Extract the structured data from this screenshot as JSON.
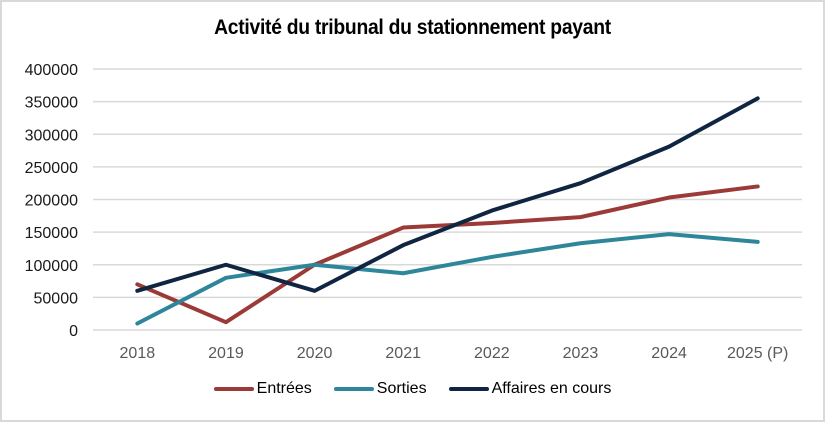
{
  "chart_data": {
    "type": "line",
    "title": "Activité du tribunal du stationnement payant",
    "xlabel": "",
    "ylabel": "",
    "categories": [
      "2018",
      "2019",
      "2020",
      "2021",
      "2022",
      "2023",
      "2024",
      "2025 (P)"
    ],
    "ylim": [
      0,
      400000
    ],
    "yticks": [
      0,
      50000,
      100000,
      150000,
      200000,
      250000,
      300000,
      350000,
      400000
    ],
    "ytick_labels": [
      "0",
      "50000",
      "100000",
      "150000",
      "200000",
      "250000",
      "300000",
      "350000",
      "400000"
    ],
    "grid": true,
    "legend_position": "bottom",
    "series": [
      {
        "name": "Entrées",
        "color": "#9b3a36",
        "values": [
          70000,
          12000,
          100000,
          157000,
          164000,
          173000,
          203000,
          220000
        ]
      },
      {
        "name": "Sorties",
        "color": "#2e869b",
        "values": [
          10000,
          80000,
          100000,
          87000,
          112000,
          133000,
          147000,
          135000
        ]
      },
      {
        "name": "Affaires en cours",
        "color": "#0f2541",
        "values": [
          60000,
          100000,
          60000,
          130000,
          183000,
          225000,
          281000,
          355000
        ]
      }
    ]
  }
}
